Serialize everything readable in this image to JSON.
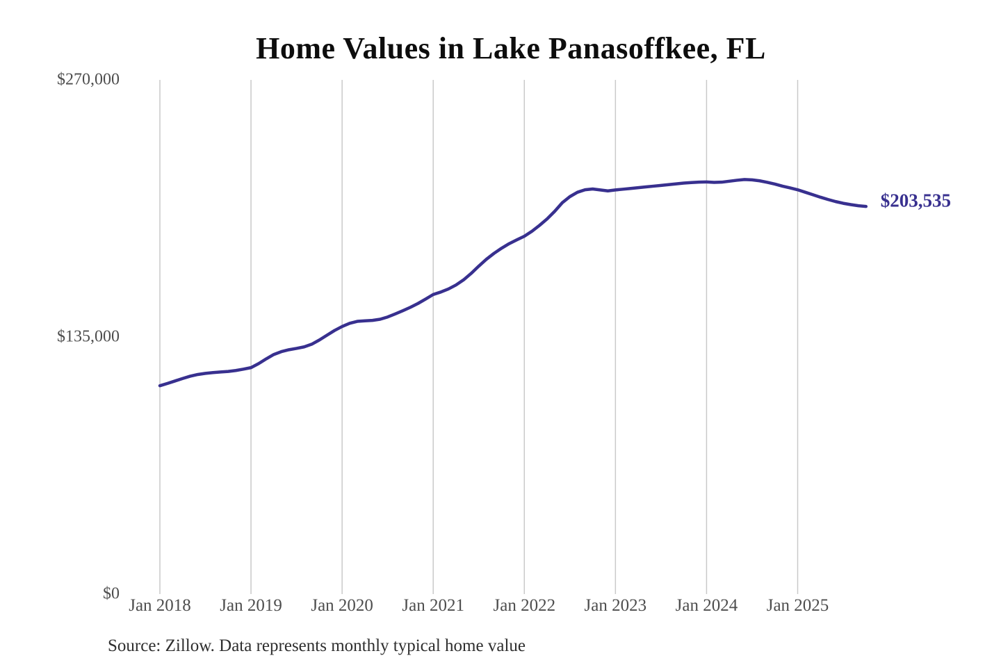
{
  "title": "Home Values in Lake Panasoffkee, FL",
  "end_label": "$203,535",
  "source_note": "Source: Zillow. Data represents monthly typical home value",
  "colors": {
    "line": "#38308f",
    "end_label": "#38308f",
    "grid": "#c9c9c9",
    "tick_text": "#4d4d4d",
    "title_text": "#0d0d0d",
    "source_text": "#2e2e2e",
    "background": "#ffffff"
  },
  "y_axis": {
    "ticks": [
      {
        "label": "$270,000",
        "value": 270000
      },
      {
        "label": "$135,000",
        "value": 135000
      },
      {
        "label": "$0",
        "value": 0
      }
    ]
  },
  "x_axis": {
    "ticks": [
      {
        "label": "Jan 2018",
        "month_index": 0
      },
      {
        "label": "Jan 2019",
        "month_index": 12
      },
      {
        "label": "Jan 2020",
        "month_index": 24
      },
      {
        "label": "Jan 2021",
        "month_index": 36
      },
      {
        "label": "Jan 2022",
        "month_index": 48
      },
      {
        "label": "Jan 2023",
        "month_index": 60
      },
      {
        "label": "Jan 2024",
        "month_index": 72
      },
      {
        "label": "Jan 2025",
        "month_index": 84
      }
    ]
  },
  "chart_data": {
    "type": "line",
    "title": "Home Values in Lake Panasoffkee, FL",
    "xlabel": "",
    "ylabel": "",
    "ylim": [
      0,
      270000
    ],
    "grid": "vertical-only",
    "legend": false,
    "series_name": "Monthly typical home value",
    "last_point_label": "$203,535",
    "x": [
      "2018-01",
      "2018-02",
      "2018-03",
      "2018-04",
      "2018-05",
      "2018-06",
      "2018-07",
      "2018-08",
      "2018-09",
      "2018-10",
      "2018-11",
      "2018-12",
      "2019-01",
      "2019-02",
      "2019-03",
      "2019-04",
      "2019-05",
      "2019-06",
      "2019-07",
      "2019-08",
      "2019-09",
      "2019-10",
      "2019-11",
      "2019-12",
      "2020-01",
      "2020-02",
      "2020-03",
      "2020-04",
      "2020-05",
      "2020-06",
      "2020-07",
      "2020-08",
      "2020-09",
      "2020-10",
      "2020-11",
      "2020-12",
      "2021-01",
      "2021-02",
      "2021-03",
      "2021-04",
      "2021-05",
      "2021-06",
      "2021-07",
      "2021-08",
      "2021-09",
      "2021-10",
      "2021-11",
      "2021-12",
      "2022-01",
      "2022-02",
      "2022-03",
      "2022-04",
      "2022-05",
      "2022-06",
      "2022-07",
      "2022-08",
      "2022-09",
      "2022-10",
      "2022-11",
      "2022-12",
      "2023-01",
      "2023-02",
      "2023-03",
      "2023-04",
      "2023-05",
      "2023-06",
      "2023-07",
      "2023-08",
      "2023-09",
      "2023-10",
      "2023-11",
      "2023-12",
      "2024-01",
      "2024-02",
      "2024-03",
      "2024-04",
      "2024-05",
      "2024-06",
      "2024-07",
      "2024-08",
      "2024-09",
      "2024-10",
      "2024-11",
      "2024-12",
      "2025-01",
      "2025-02",
      "2025-03",
      "2025-04",
      "2025-05",
      "2025-06",
      "2025-07",
      "2025-08",
      "2025-09",
      "2025-10"
    ],
    "values": [
      109400,
      110600,
      111900,
      113200,
      114400,
      115300,
      115900,
      116300,
      116600,
      116900,
      117400,
      118100,
      118900,
      121000,
      123500,
      125800,
      127300,
      128300,
      129000,
      129800,
      131200,
      133400,
      135900,
      138400,
      140500,
      142200,
      143200,
      143500,
      143700,
      144300,
      145500,
      147100,
      148800,
      150600,
      152600,
      154900,
      157300,
      158600,
      160200,
      162300,
      165000,
      168400,
      172200,
      175800,
      178900,
      181600,
      184000,
      186000,
      187900,
      190500,
      193600,
      197000,
      201000,
      205500,
      208700,
      211000,
      212300,
      212700,
      212200,
      211700,
      212200,
      212600,
      213000,
      213400,
      213800,
      214200,
      214600,
      215000,
      215400,
      215800,
      216100,
      216300,
      216400,
      216200,
      216300,
      216800,
      217300,
      217700,
      217500,
      217000,
      216200,
      215300,
      214200,
      213300,
      212300,
      211000,
      209700,
      208400,
      207200,
      206100,
      205200,
      204500,
      203900,
      203535
    ]
  }
}
